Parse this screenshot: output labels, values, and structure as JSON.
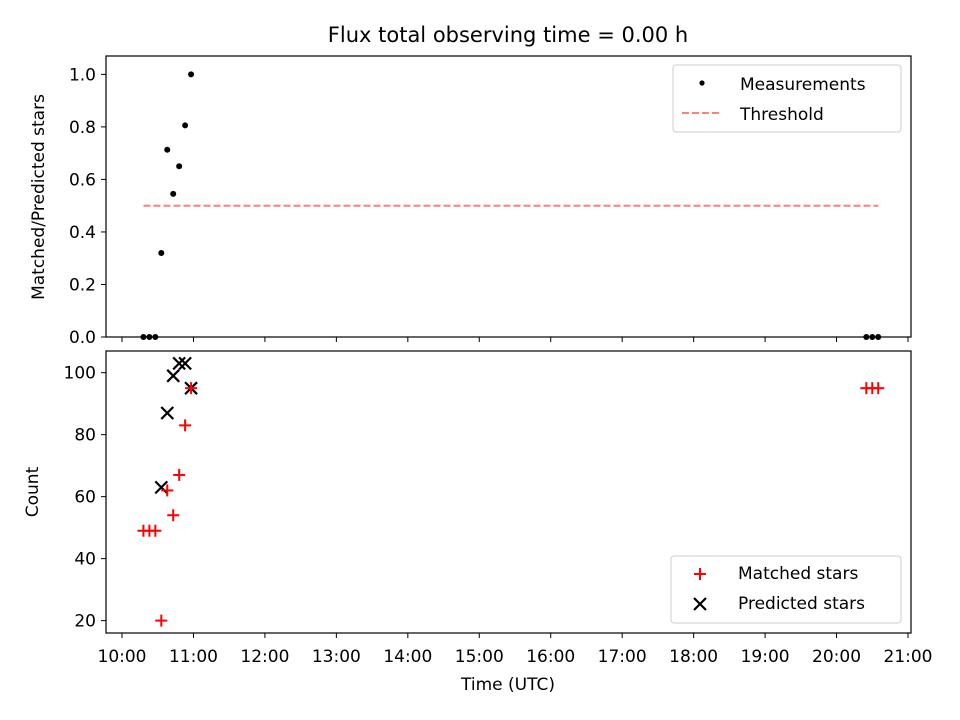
{
  "figure": {
    "title": "Flux total observing time = 0.00 h"
  },
  "chart_data": [
    {
      "type": "scatter",
      "title": "Flux total observing time = 0.00 h",
      "xlabel": "",
      "ylabel": "Matched/Predicted stars",
      "x_range": [
        "10:00",
        "21:00"
      ],
      "ylim": [
        0.0,
        1.07
      ],
      "yticks": [
        0.0,
        0.2,
        0.4,
        0.6,
        0.8,
        1.0
      ],
      "ytick_labels": [
        "0.0",
        "0.2",
        "0.4",
        "0.6",
        "0.8",
        "1.0"
      ],
      "legend_position": "top-right",
      "series": [
        {
          "name": "Measurements",
          "marker": "dot",
          "color": "#000000",
          "points": [
            {
              "x": "10:18",
              "y": 0.0
            },
            {
              "x": "10:23",
              "y": 0.0
            },
            {
              "x": "10:28",
              "y": 0.0
            },
            {
              "x": "10:33",
              "y": 0.32
            },
            {
              "x": "10:38",
              "y": 0.713
            },
            {
              "x": "10:43",
              "y": 0.545
            },
            {
              "x": "10:48",
              "y": 0.65
            },
            {
              "x": "10:53",
              "y": 0.806
            },
            {
              "x": "10:58",
              "y": 1.0
            },
            {
              "x": "20:25",
              "y": 0.0
            },
            {
              "x": "20:30",
              "y": 0.0
            },
            {
              "x": "20:35",
              "y": 0.0
            }
          ]
        },
        {
          "name": "Threshold",
          "style": "dashed",
          "color": "#ff7f7f",
          "points": [
            {
              "x": "10:18",
              "y": 0.5
            },
            {
              "x": "20:35",
              "y": 0.5
            }
          ]
        }
      ]
    },
    {
      "type": "scatter",
      "xlabel": "Time (UTC)",
      "ylabel": "Count",
      "x_range": [
        "10:00",
        "21:00"
      ],
      "xtick_labels": [
        "10:00",
        "11:00",
        "12:00",
        "13:00",
        "14:00",
        "15:00",
        "16:00",
        "17:00",
        "18:00",
        "19:00",
        "20:00",
        "21:00"
      ],
      "ylim": [
        16,
        107
      ],
      "yticks": [
        20,
        40,
        60,
        80,
        100
      ],
      "ytick_labels": [
        "20",
        "40",
        "60",
        "80",
        "100"
      ],
      "legend_position": "bottom-right",
      "series": [
        {
          "name": "Matched stars",
          "marker": "plus",
          "color": "#ff0000",
          "points": [
            {
              "x": "10:18",
              "y": 49
            },
            {
              "x": "10:23",
              "y": 49
            },
            {
              "x": "10:28",
              "y": 49
            },
            {
              "x": "10:33",
              "y": 20
            },
            {
              "x": "10:38",
              "y": 62
            },
            {
              "x": "10:43",
              "y": 54
            },
            {
              "x": "10:48",
              "y": 67
            },
            {
              "x": "10:53",
              "y": 83
            },
            {
              "x": "10:58",
              "y": 95
            },
            {
              "x": "20:25",
              "y": 95
            },
            {
              "x": "20:30",
              "y": 95
            },
            {
              "x": "20:35",
              "y": 95
            }
          ]
        },
        {
          "name": "Predicted stars",
          "marker": "x",
          "color": "#000000",
          "points": [
            {
              "x": "10:33",
              "y": 63
            },
            {
              "x": "10:38",
              "y": 87
            },
            {
              "x": "10:43",
              "y": 99
            },
            {
              "x": "10:48",
              "y": 103
            },
            {
              "x": "10:53",
              "y": 103
            },
            {
              "x": "10:58",
              "y": 95
            }
          ]
        }
      ]
    }
  ]
}
